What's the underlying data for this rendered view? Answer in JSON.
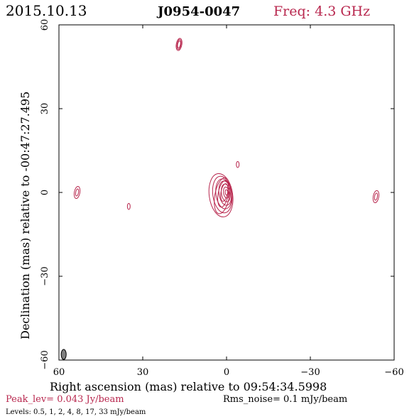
{
  "header": {
    "date": "2015.10.13",
    "source": "J0954-0047",
    "freq": "Freq: 4.3 GHz"
  },
  "footer": {
    "peak": "Peak_lev=  0.043 Jy/beam",
    "rms": "Rms_noise=  0.1 mJy/beam",
    "levels": "Levels: 0.5,    1,    2,    4,    8,   17,   33 mJy/beam"
  },
  "colors": {
    "contour": "#b8274e",
    "axis": "#000000",
    "beam": "#808080"
  },
  "chart_data": {
    "type": "contour",
    "title": "J0954-0047",
    "xlabel": "Right ascension (mas) relative to 09:54:34.5998",
    "ylabel": "Declination (mas) relative to -00:47:27.495",
    "xlim": [
      60,
      -60
    ],
    "ylim": [
      -60,
      60
    ],
    "x_ticks": [
      60,
      30,
      0,
      -30,
      -60
    ],
    "y_ticks": [
      60,
      30,
      0,
      -30,
      -60
    ],
    "x_tick_labels": [
      "60",
      "30",
      "0",
      "−30",
      "−60"
    ],
    "y_tick_labels": [
      "60",
      "30",
      "0",
      "−30",
      "−60"
    ],
    "contour_levels_mJy": [
      0.5,
      1,
      2,
      4,
      8,
      17,
      33
    ],
    "peak_Jy_per_beam": 0.043,
    "rms_mJy_per_beam": 0.1,
    "beam": {
      "x": 58.3,
      "y": -58.0,
      "major": 1.8,
      "minor": 0.9,
      "pa": 0
    },
    "core": {
      "x": 0.0,
      "y": 0.0
    },
    "components": [
      {
        "x": 17.0,
        "y": 53.0
      },
      {
        "x": 53.5,
        "y": 0.0
      },
      {
        "x": 35.0,
        "y": -5.0
      },
      {
        "x": -4.0,
        "y": 10.0
      },
      {
        "x": -53.5,
        "y": -1.5
      }
    ]
  }
}
